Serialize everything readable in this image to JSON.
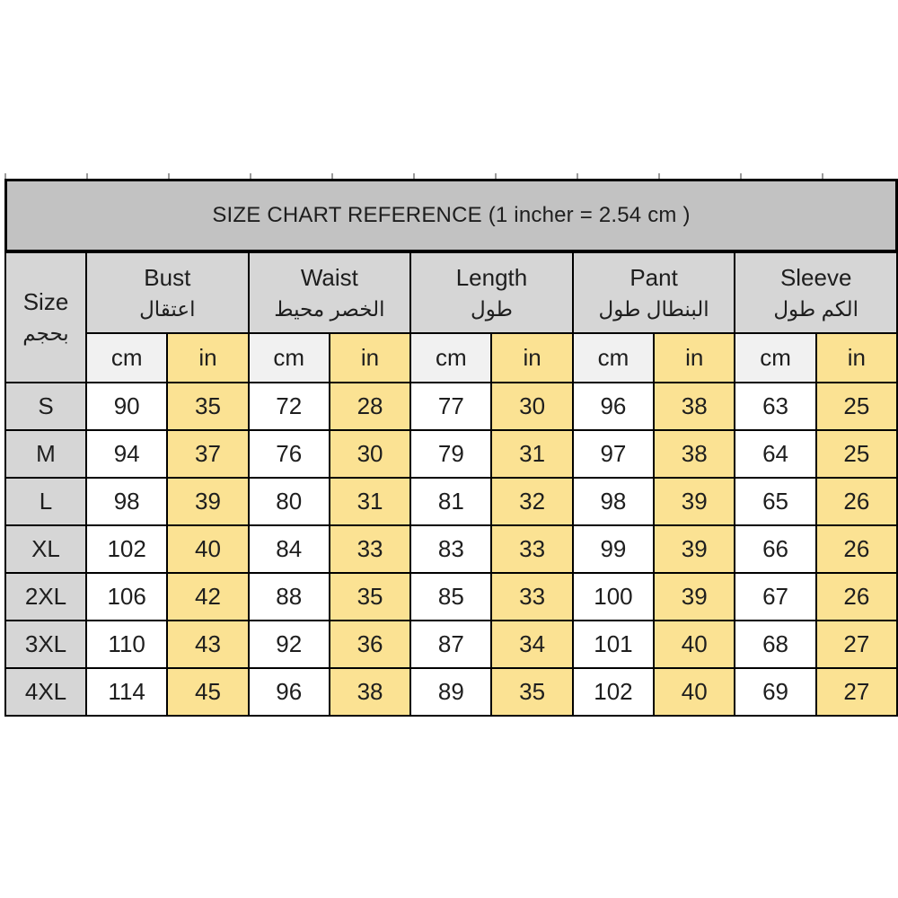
{
  "title": "SIZE CHART REFERENCE (1 incher = 2.54 cm )",
  "colors": {
    "title_bar_bg": "#c2c2c2",
    "header_cell_bg": "#d6d6d6",
    "cm_header_bg": "#f1f1f1",
    "inch_highlight_bg": "#fbe293",
    "cm_value_bg": "#ffffff",
    "border": "#000000"
  },
  "table": {
    "size_header": {
      "en": "Size",
      "ar": "بحجم"
    },
    "unit_labels": [
      "cm",
      "in"
    ],
    "groups": [
      {
        "en": "Bust",
        "ar": "اعتقال"
      },
      {
        "en": "Waist",
        "ar": "الخصر محيط"
      },
      {
        "en": "Length",
        "ar": "طول"
      },
      {
        "en": "Pant",
        "ar": "البنطال طول"
      },
      {
        "en": "Sleeve",
        "ar": "الكم طول"
      }
    ],
    "rows": [
      {
        "size": "S",
        "values": [
          90,
          35,
          72,
          28,
          77,
          30,
          96,
          38,
          63,
          25
        ]
      },
      {
        "size": "M",
        "values": [
          94,
          37,
          76,
          30,
          79,
          31,
          97,
          38,
          64,
          25
        ]
      },
      {
        "size": "L",
        "values": [
          98,
          39,
          80,
          31,
          81,
          32,
          98,
          39,
          65,
          26
        ]
      },
      {
        "size": "XL",
        "values": [
          102,
          40,
          84,
          33,
          83,
          33,
          99,
          39,
          66,
          26
        ]
      },
      {
        "size": "2XL",
        "values": [
          106,
          42,
          88,
          35,
          85,
          33,
          100,
          39,
          67,
          26
        ]
      },
      {
        "size": "3XL",
        "values": [
          110,
          43,
          92,
          36,
          87,
          34,
          101,
          40,
          68,
          27
        ]
      },
      {
        "size": "4XL",
        "values": [
          114,
          45,
          96,
          38,
          89,
          35,
          102,
          40,
          69,
          27
        ]
      }
    ]
  },
  "chart_data": {
    "type": "table",
    "title": "SIZE CHART REFERENCE (1 incher = 2.54 cm )",
    "columns": [
      "Size",
      "Bust cm",
      "Bust in",
      "Waist cm",
      "Waist in",
      "Length cm",
      "Length in",
      "Pant cm",
      "Pant in",
      "Sleeve cm",
      "Sleeve in"
    ],
    "rows": [
      [
        "S",
        90,
        35,
        72,
        28,
        77,
        30,
        96,
        38,
        63,
        25
      ],
      [
        "M",
        94,
        37,
        76,
        30,
        79,
        31,
        97,
        38,
        64,
        25
      ],
      [
        "L",
        98,
        39,
        80,
        31,
        81,
        32,
        98,
        39,
        65,
        26
      ],
      [
        "XL",
        102,
        40,
        84,
        33,
        83,
        33,
        99,
        39,
        66,
        26
      ],
      [
        "2XL",
        106,
        42,
        88,
        35,
        85,
        33,
        100,
        39,
        67,
        26
      ],
      [
        "3XL",
        110,
        43,
        92,
        36,
        87,
        34,
        101,
        40,
        68,
        27
      ],
      [
        "4XL",
        114,
        45,
        96,
        38,
        89,
        35,
        102,
        40,
        69,
        27
      ]
    ]
  }
}
